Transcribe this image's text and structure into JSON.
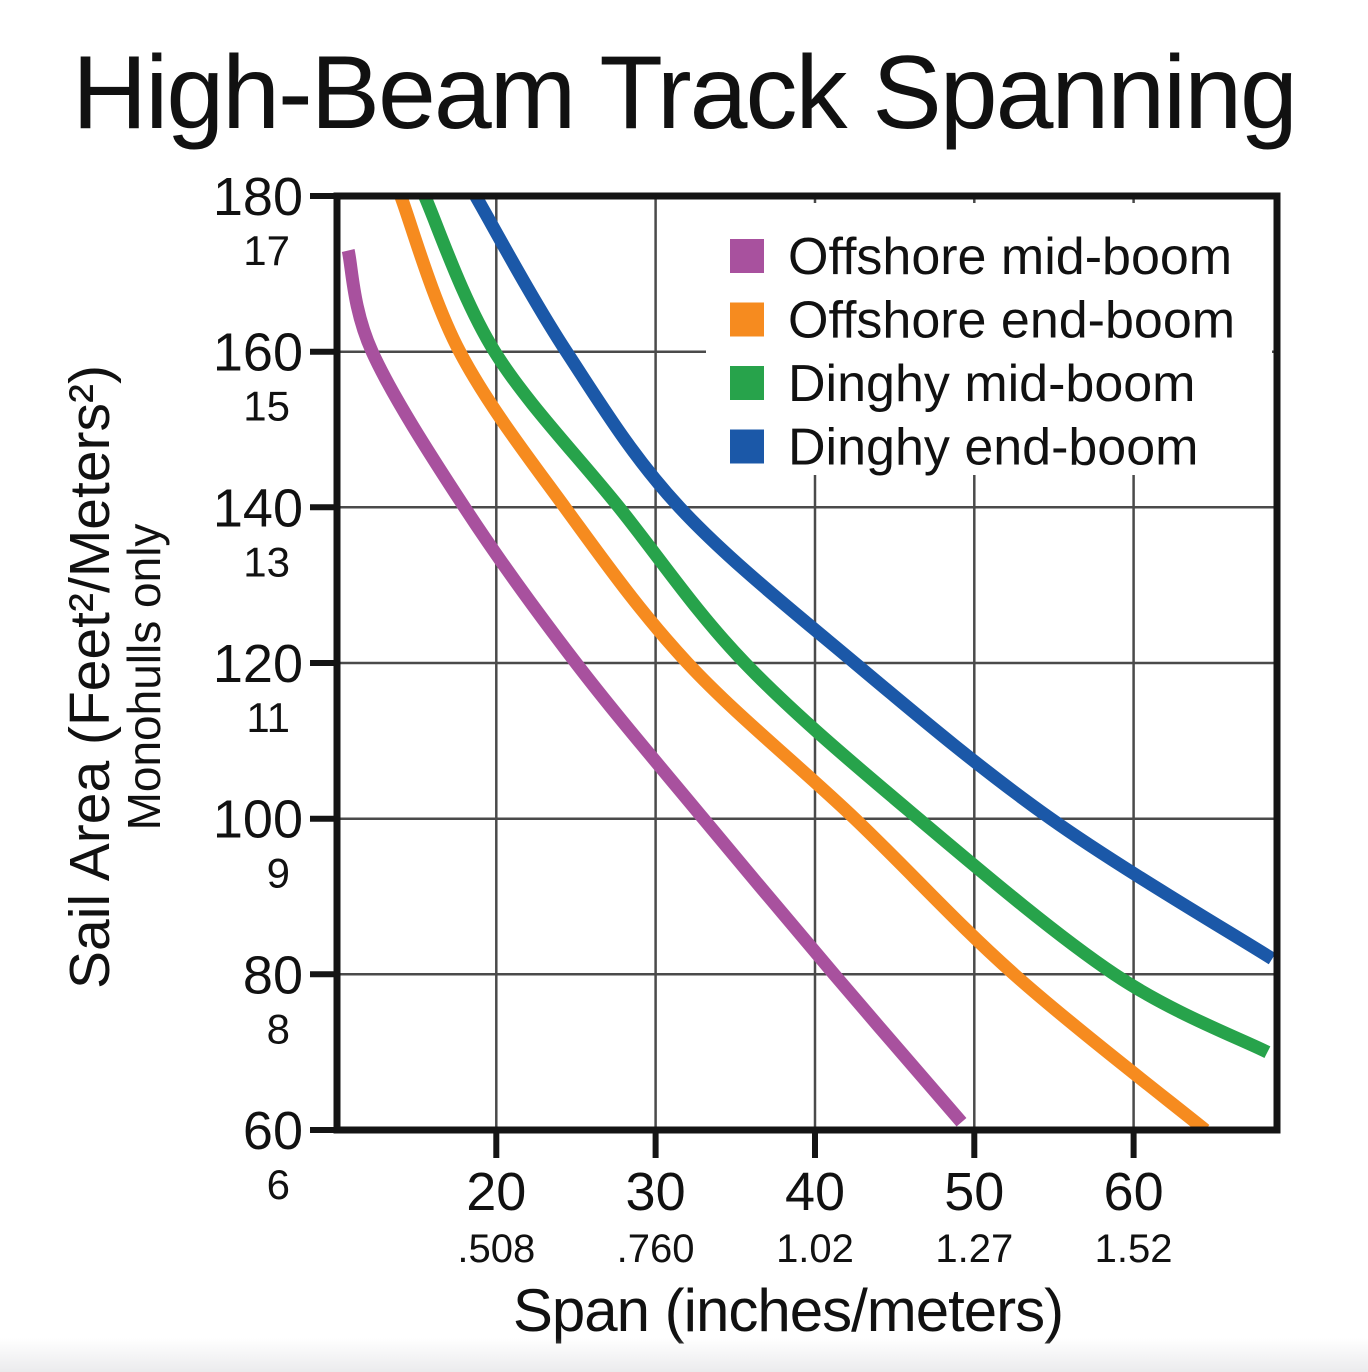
{
  "title": "High-Beam Track Spanning",
  "axes": {
    "y_label": "Sail Area (Feet²/Meters²)",
    "y_sublabel": "Monohulls only",
    "x_label": "Span (inches/meters)",
    "y_ticks": [
      {
        "value": 180,
        "primary": "180",
        "secondary": "17"
      },
      {
        "value": 160,
        "primary": "160",
        "secondary": "15"
      },
      {
        "value": 140,
        "primary": "140",
        "secondary": "13"
      },
      {
        "value": 120,
        "primary": "120",
        "secondary": "11"
      },
      {
        "value": 100,
        "primary": "100",
        "secondary": "9"
      },
      {
        "value": 80,
        "primary": "80",
        "secondary": "8"
      },
      {
        "value": 60,
        "primary": "60",
        "secondary": "6"
      }
    ],
    "x_ticks": [
      {
        "value": 20,
        "primary": "20",
        "secondary": ".508"
      },
      {
        "value": 30,
        "primary": "30",
        "secondary": ".760"
      },
      {
        "value": 40,
        "primary": "40",
        "secondary": "1.02"
      },
      {
        "value": 50,
        "primary": "50",
        "secondary": "1.27"
      },
      {
        "value": 60,
        "primary": "60",
        "secondary": "1.52"
      }
    ]
  },
  "legend": {
    "items": [
      {
        "label": "Offshore mid-boom",
        "color": "#a8519e"
      },
      {
        "label": "Offshore end-boom",
        "color": "#f68b1f"
      },
      {
        "label": "Dinghy mid-boom",
        "color": "#27a34b"
      },
      {
        "label": "Dinghy end-boom",
        "color": "#1b58a8"
      }
    ]
  },
  "chart_data": {
    "type": "line",
    "title": "High-Beam Track Spanning",
    "xlabel": "Span (inches/meters)",
    "ylabel": "Sail Area (Feet²/Meters²) — Monohulls only",
    "xlim": [
      10,
      69
    ],
    "ylim": [
      60,
      180
    ],
    "grid": true,
    "legend_position": "top-right",
    "x_axis_dual_units": {
      "inches": [
        20,
        30,
        40,
        50,
        60
      ],
      "meters": [
        0.508,
        0.76,
        1.02,
        1.27,
        1.52
      ]
    },
    "y_axis_dual_units": {
      "feet2": [
        180,
        160,
        140,
        120,
        100,
        80,
        60
      ],
      "meters2": [
        17,
        15,
        13,
        11,
        9,
        8,
        6
      ]
    },
    "series": [
      {
        "name": "Offshore mid-boom",
        "color": "#a8519e",
        "points": [
          [
            10.7,
            173
          ],
          [
            12.2,
            160
          ],
          [
            18.0,
            140
          ],
          [
            25.0,
            120
          ],
          [
            33.0,
            100
          ],
          [
            41.2,
            80
          ],
          [
            49.2,
            61
          ]
        ]
      },
      {
        "name": "Offshore end-boom",
        "color": "#f68b1f",
        "points": [
          [
            14.0,
            180
          ],
          [
            17.7,
            160
          ],
          [
            24.3,
            140
          ],
          [
            32.0,
            120
          ],
          [
            42.5,
            100
          ],
          [
            52.5,
            80
          ],
          [
            64.5,
            60
          ]
        ]
      },
      {
        "name": "Dinghy mid-boom",
        "color": "#27a34b",
        "points": [
          [
            15.5,
            180
          ],
          [
            19.9,
            160
          ],
          [
            27.7,
            140
          ],
          [
            35.6,
            120
          ],
          [
            46.5,
            100
          ],
          [
            58.8,
            80
          ],
          [
            68.4,
            70
          ]
        ]
      },
      {
        "name": "Dinghy end-boom",
        "color": "#1b58a8",
        "points": [
          [
            18.7,
            180
          ],
          [
            24.4,
            160
          ],
          [
            31.5,
            140
          ],
          [
            42.5,
            120
          ],
          [
            54.8,
            100
          ],
          [
            68.7,
            82
          ]
        ]
      }
    ]
  },
  "style": {
    "grid_color": "#4a4a4a",
    "axis_color": "#141414",
    "text_color": "#111111",
    "plot_bg": "#ffffff"
  }
}
